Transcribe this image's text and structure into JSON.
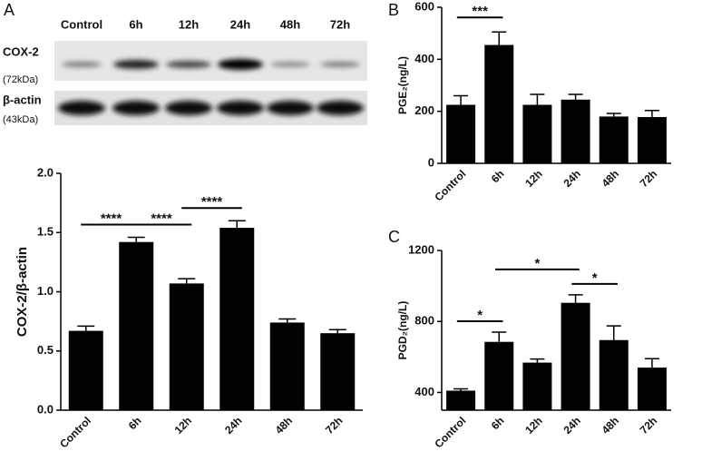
{
  "panel_labels": [
    "A",
    "B",
    "C"
  ],
  "blot": {
    "lanes": [
      "Control",
      "6h",
      "12h",
      "24h",
      "48h",
      "72h"
    ],
    "rows": [
      {
        "name": "COX-2",
        "weight": "(72kDa)"
      },
      {
        "name": "β-actin",
        "weight": "(43kDa)"
      }
    ]
  },
  "chart_data": [
    {
      "type": "bar",
      "ylabel": "COX-2/β-actin",
      "categories": [
        "Control",
        "6h",
        "12h",
        "24h",
        "48h",
        "72h"
      ],
      "values": [
        0.67,
        1.42,
        1.07,
        1.54,
        0.74,
        0.65
      ],
      "errors": [
        0.04,
        0.04,
        0.04,
        0.06,
        0.03,
        0.03
      ],
      "color": "#000000",
      "ylim": [
        0,
        2
      ],
      "yticks": [
        {
          "value": 0,
          "label": "0.0"
        },
        {
          "value": 0.5,
          "label": "0.5"
        },
        {
          "value": 1,
          "label": "1.0"
        },
        {
          "value": 1.5,
          "label": "1.5"
        },
        {
          "value": 2,
          "label": "2.0"
        }
      ],
      "annotations": [
        "****",
        "****",
        "****"
      ]
    },
    {
      "type": "bar",
      "ylabel": "PGE₂(ng/L)",
      "categories": [
        "Control",
        "6h",
        "12h",
        "24h",
        "48h",
        "72h"
      ],
      "values": [
        225,
        455,
        225,
        245,
        180,
        178
      ],
      "errors": [
        35,
        50,
        40,
        20,
        12,
        25
      ],
      "color": "#000000",
      "ylim": [
        0,
        600
      ],
      "yticks": [
        0,
        200,
        400,
        600
      ],
      "annotations": [
        "***"
      ]
    },
    {
      "type": "bar",
      "ylabel": "PGD₂(ng/L)",
      "categories": [
        "Control",
        "6h",
        "12h",
        "24h",
        "48h",
        "72h"
      ],
      "values": [
        410,
        685,
        568,
        905,
        695,
        540
      ],
      "errors": [
        10,
        55,
        20,
        45,
        80,
        50
      ],
      "color": "#000000",
      "ylim": [
        300,
        1200
      ],
      "yticks": [
        400,
        800,
        1200
      ],
      "annotations": [
        "*",
        "*",
        "*"
      ]
    }
  ]
}
